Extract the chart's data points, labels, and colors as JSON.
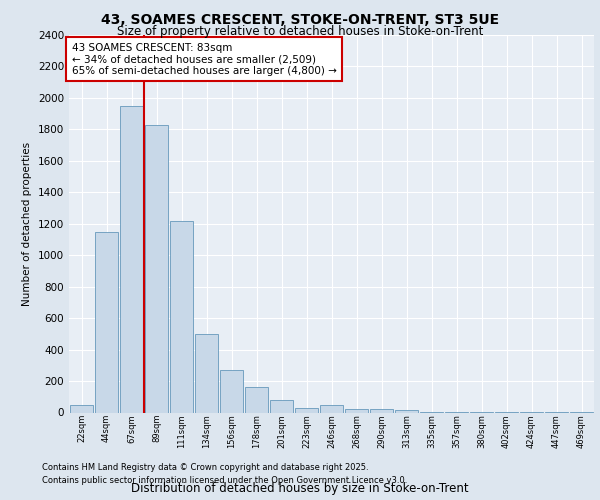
{
  "title1": "43, SOAMES CRESCENT, STOKE-ON-TRENT, ST3 5UE",
  "title2": "Size of property relative to detached houses in Stoke-on-Trent",
  "xlabel": "Distribution of detached houses by size in Stoke-on-Trent",
  "ylabel": "Number of detached properties",
  "categories": [
    "22sqm",
    "44sqm",
    "67sqm",
    "89sqm",
    "111sqm",
    "134sqm",
    "156sqm",
    "178sqm",
    "201sqm",
    "223sqm",
    "246sqm",
    "268sqm",
    "290sqm",
    "313sqm",
    "335sqm",
    "357sqm",
    "380sqm",
    "402sqm",
    "424sqm",
    "447sqm",
    "469sqm"
  ],
  "values": [
    50,
    1150,
    1950,
    1830,
    1220,
    500,
    270,
    160,
    80,
    30,
    50,
    20,
    20,
    15,
    5,
    5,
    5,
    2,
    1,
    1,
    1
  ],
  "bar_color": "#c8d8e8",
  "bar_edge_color": "#6699bb",
  "vline_color": "#cc0000",
  "annotation_text": "43 SOAMES CRESCENT: 83sqm\n← 34% of detached houses are smaller (2,509)\n65% of semi-detached houses are larger (4,800) →",
  "annotation_box_color": "#ffffff",
  "annotation_box_edge": "#cc0000",
  "ylim": [
    0,
    2400
  ],
  "yticks": [
    0,
    200,
    400,
    600,
    800,
    1000,
    1200,
    1400,
    1600,
    1800,
    2000,
    2200,
    2400
  ],
  "bg_color": "#dde6ef",
  "plot_bg_color": "#e8eef5",
  "grid_color": "#ffffff",
  "footer1": "Contains HM Land Registry data © Crown copyright and database right 2025.",
  "footer2": "Contains public sector information licensed under the Open Government Licence v3.0.",
  "vline_bin_index": 3
}
